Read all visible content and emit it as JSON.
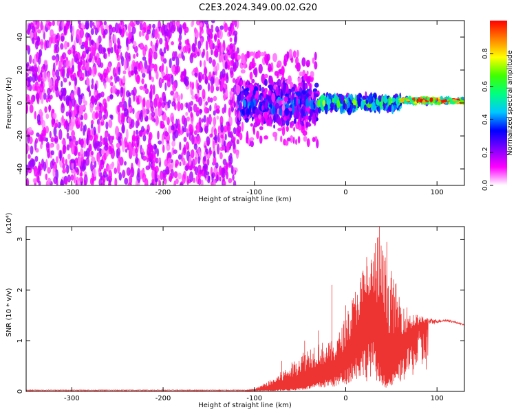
{
  "title": "C2E3.2024.349.00.02.G20",
  "chart_data": [
    {
      "type": "heatmap",
      "xlabel": "Height of straight line (km)",
      "ylabel": "Frequency (Hz)",
      "xlim": [
        -350,
        130
      ],
      "ylim": [
        -50,
        50
      ],
      "x_ticks": [
        -300,
        -200,
        -100,
        0,
        100
      ],
      "y_ticks": [
        -40,
        -20,
        0,
        20,
        40
      ],
      "x_tick_labels": [
        "-300",
        "-200",
        "-100",
        "0",
        "100"
      ],
      "y_tick_labels": [
        "-40",
        "-20",
        "0",
        "20",
        "40"
      ],
      "colorbar": {
        "label": "Normalized spectral amplitude",
        "range": [
          0,
          1
        ],
        "ticks": [
          0.0,
          0.2,
          0.4,
          0.6,
          0.8
        ],
        "tick_labels": [
          "0.0",
          "0.2",
          "0.4",
          "0.6",
          "0.8"
        ],
        "colors": [
          "#ffffff",
          "#ff00ff",
          "#8000ff",
          "#0000ff",
          "#00c8ff",
          "#00ff80",
          "#40ff00",
          "#ffff00",
          "#ff8000",
          "#ff0000"
        ]
      },
      "regions": [
        {
          "x_range": [
            -350,
            -118
          ],
          "f_range": [
            -50,
            50
          ],
          "amplitude": 0.12,
          "pattern": "scattered noise"
        },
        {
          "x_range": [
            -118,
            -30
          ],
          "f_range": [
            -18,
            20
          ],
          "amplitude": 0.3,
          "pattern": "blob band"
        },
        {
          "x_range": [
            -30,
            60
          ],
          "f_range": [
            -6,
            6
          ],
          "amplitude": 0.5,
          "pattern": "band"
        },
        {
          "x_range": [
            60,
            130
          ],
          "f_range": [
            -1,
            4
          ],
          "amplitude": 0.8,
          "pattern": "narrow line"
        }
      ]
    },
    {
      "type": "line",
      "xlabel": "Height of straight line (km)",
      "ylabel": "SNR (10 * v/v)",
      "y_exponent_label": "(x10⁴)",
      "xlim": [
        -350,
        130
      ],
      "ylim": [
        0,
        3.25
      ],
      "x_ticks": [
        -300,
        -200,
        -100,
        0,
        100
      ],
      "y_ticks": [
        0,
        1,
        2,
        3
      ],
      "x_tick_labels": [
        "-300",
        "-200",
        "-100",
        "0",
        "100"
      ],
      "y_tick_labels": [
        "0",
        "1",
        "2",
        "3"
      ],
      "color": "#ee3333",
      "envelope": {
        "x": [
          -350,
          -110,
          -100,
          -80,
          -60,
          -50,
          -40,
          -30,
          -20,
          -10,
          0,
          10,
          20,
          30,
          35,
          40,
          45,
          50,
          60,
          70,
          80,
          90,
          100,
          110,
          120,
          130
        ],
        "baseline": [
          0.02,
          0.02,
          0.02,
          0.03,
          0.05,
          0.08,
          0.12,
          0.18,
          0.25,
          0.3,
          0.45,
          0.7,
          0.9,
          1.0,
          0.6,
          0.4,
          0.2,
          0.3,
          0.6,
          0.9,
          1.2,
          1.3,
          1.35,
          1.38,
          1.35,
          1.3
        ],
        "peak": [
          0.02,
          0.02,
          0.05,
          0.25,
          0.55,
          0.75,
          0.9,
          1.0,
          0.95,
          1.05,
          1.5,
          2.0,
          2.5,
          2.8,
          3.2,
          2.9,
          2.6,
          2.4,
          1.9,
          1.6,
          1.5,
          1.45,
          1.42,
          1.42,
          1.38,
          1.32
        ]
      },
      "spikes": [
        {
          "x": 37,
          "y": 3.25
        },
        {
          "x": 45,
          "y": 2.95
        },
        {
          "x": 23,
          "y": 2.65
        },
        {
          "x": -15,
          "y": 2.1
        },
        {
          "x": 0,
          "y": 1.7
        },
        {
          "x": -30,
          "y": 1.2
        },
        {
          "x": -45,
          "y": 1.0
        },
        {
          "x": -70,
          "y": 0.6
        }
      ]
    }
  ]
}
